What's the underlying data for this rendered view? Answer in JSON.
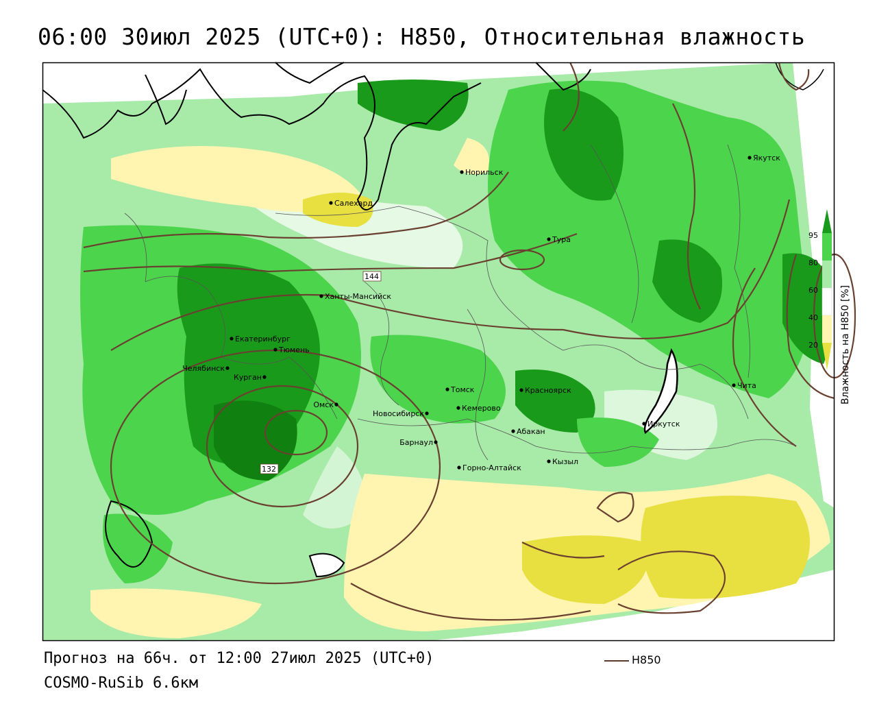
{
  "title": "06:00 30июл 2025 (UTC+0): H850, Относительная влажность",
  "forecast_line": "Прогноз на 66ч. от 12:00 27июл 2025 (UTC+0)",
  "model_line": "COSMO-RuSib 6.6км",
  "legend": {
    "label": "H850",
    "color": "#5a3a2a"
  },
  "colorbar": {
    "title": "Влажность на H850 [%]",
    "ticks": [
      "95",
      "80",
      "60",
      "40",
      "20"
    ],
    "colors": {
      "dark_green": "#1a9a1a",
      "green": "#4cd44c",
      "light_green": "#a8eaa8",
      "light_yellow": "#fff5b0",
      "yellow": "#e8e040"
    }
  },
  "contour_labels": {
    "north": "144",
    "low": "132"
  },
  "cities": [
    {
      "name": "Салехард"
    },
    {
      "name": "Норильск"
    },
    {
      "name": "Якутск"
    },
    {
      "name": "Тура"
    },
    {
      "name": "Ханты-Мансийск"
    },
    {
      "name": "Екатеринбург"
    },
    {
      "name": "Тюмень"
    },
    {
      "name": "Челябинск"
    },
    {
      "name": "Курган"
    },
    {
      "name": "Омск"
    },
    {
      "name": "Томск"
    },
    {
      "name": "Новосибирск"
    },
    {
      "name": "Кемерово"
    },
    {
      "name": "Красноярск"
    },
    {
      "name": "Абакан"
    },
    {
      "name": "Барнаул"
    },
    {
      "name": "Горно-Алтайск"
    },
    {
      "name": "Кызыл"
    },
    {
      "name": "Иркутск"
    },
    {
      "name": "Чита"
    }
  ]
}
